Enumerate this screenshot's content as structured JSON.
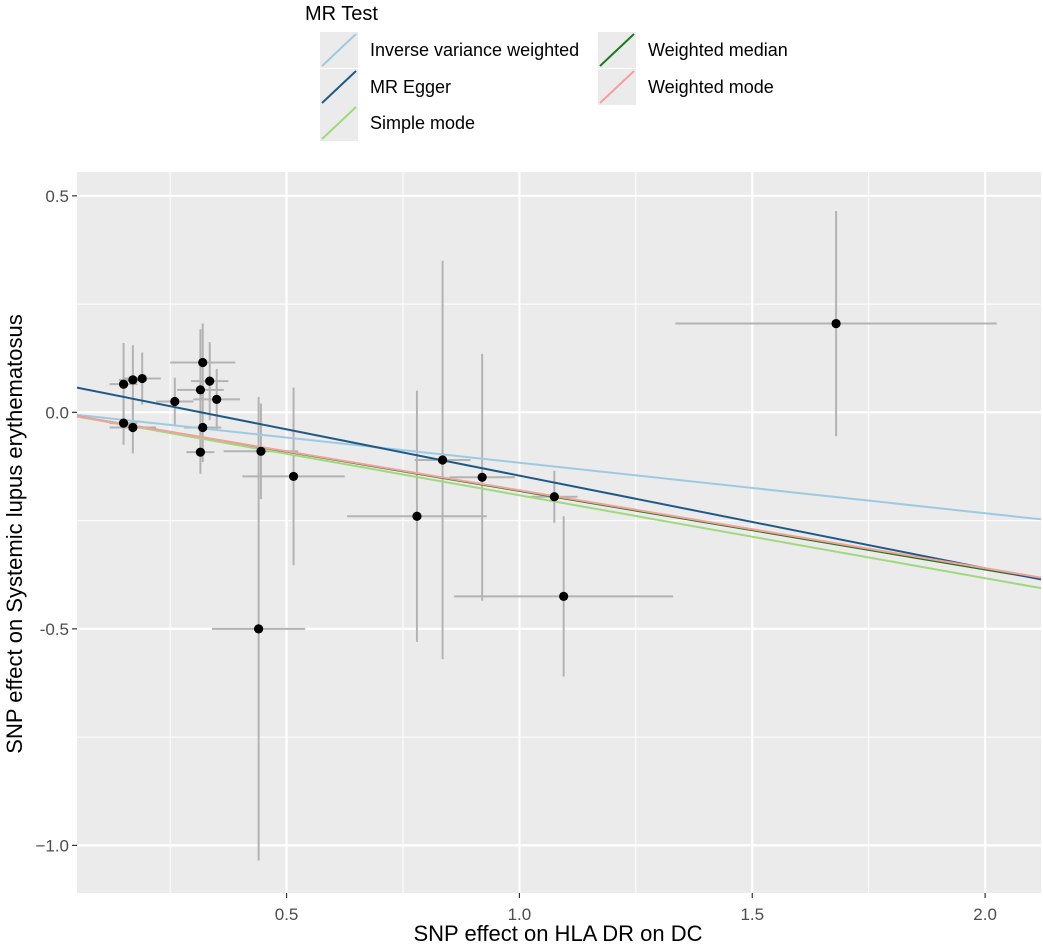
{
  "chart_data": {
    "type": "scatter",
    "title": "",
    "xlabel": "SNP effect on HLA DR on DC",
    "ylabel": "SNP effect on Systemic lupus erythematosus",
    "xlim": [
      0.05,
      2.12
    ],
    "ylim": [
      -1.11,
      0.555
    ],
    "x_ticks": [
      0.5,
      1.0,
      1.5,
      2.0
    ],
    "x_tick_labels": [
      "0.5",
      "1.0",
      "1.5",
      "2.0"
    ],
    "y_ticks": [
      -1.0,
      -0.5,
      0.0,
      0.5
    ],
    "y_tick_labels": [
      "−1.0",
      "-0.5",
      "0.0",
      "0.5"
    ],
    "grid": true,
    "legend": {
      "title": "MR Test",
      "position": "top",
      "entries": [
        {
          "label": "Inverse variance weighted",
          "color": "#9ecae1"
        },
        {
          "label": "Weighted median",
          "color": "#1b7a1b"
        },
        {
          "label": "MR Egger",
          "color": "#1f5a87"
        },
        {
          "label": "Weighted mode",
          "color": "#f4a09a"
        },
        {
          "label": "Simple mode",
          "color": "#9fd97e"
        }
      ]
    },
    "lines": [
      {
        "name": "Inverse variance weighted",
        "color": "#9ecae1",
        "intercept": 0.0,
        "slope": -0.1165
      },
      {
        "name": "MR Egger",
        "color": "#1f5a87",
        "intercept": 0.0677,
        "slope": -0.2139
      },
      {
        "name": "Weighted median",
        "color": "#1b7a1b",
        "intercept": 0.0,
        "slope": -0.1815
      },
      {
        "name": "Weighted mode",
        "color": "#f4a09a",
        "intercept": 0.0,
        "slope": -0.18
      },
      {
        "name": "Simple mode",
        "color": "#9fd97e",
        "intercept": 0.0,
        "slope": -0.1915
      }
    ],
    "points": [
      {
        "x": 0.15,
        "y": 0.065,
        "xerr": 0.03,
        "yerr": 0.095
      },
      {
        "x": 0.17,
        "y": 0.075,
        "xerr": 0.03,
        "yerr": 0.08
      },
      {
        "x": 0.19,
        "y": 0.078,
        "xerr": 0.04,
        "yerr": 0.06
      },
      {
        "x": 0.15,
        "y": -0.025,
        "xerr": 0.03,
        "yerr": 0.05
      },
      {
        "x": 0.17,
        "y": -0.035,
        "xerr": 0.05,
        "yerr": 0.06
      },
      {
        "x": 0.26,
        "y": 0.025,
        "xerr": 0.04,
        "yerr": 0.055
      },
      {
        "x": 0.32,
        "y": 0.115,
        "xerr": 0.07,
        "yerr": 0.09
      },
      {
        "x": 0.335,
        "y": 0.072,
        "xerr": 0.04,
        "yerr": 0.09
      },
      {
        "x": 0.315,
        "y": 0.052,
        "xerr": 0.05,
        "yerr": 0.14
      },
      {
        "x": 0.35,
        "y": 0.03,
        "xerr": 0.05,
        "yerr": 0.07
      },
      {
        "x": 0.32,
        "y": -0.035,
        "xerr": 0.04,
        "yerr": 0.08
      },
      {
        "x": 0.315,
        "y": -0.092,
        "xerr": 0.03,
        "yerr": 0.05
      },
      {
        "x": 0.445,
        "y": -0.09,
        "xerr": 0.08,
        "yerr": 0.11
      },
      {
        "x": 0.515,
        "y": -0.148,
        "xerr": 0.11,
        "yerr": 0.205
      },
      {
        "x": 0.44,
        "y": -0.5,
        "xerr": 0.1,
        "yerr": 0.535
      },
      {
        "x": 0.78,
        "y": -0.24,
        "xerr": 0.15,
        "yerr": 0.29
      },
      {
        "x": 0.835,
        "y": -0.11,
        "xerr": 0.06,
        "yerr": 0.46
      },
      {
        "x": 0.92,
        "y": -0.15,
        "xerr": 0.07,
        "yerr": 0.285
      },
      {
        "x": 1.075,
        "y": -0.195,
        "xerr": 0.05,
        "yerr": 0.06
      },
      {
        "x": 1.095,
        "y": -0.425,
        "xerr": 0.235,
        "yerr": 0.185
      },
      {
        "x": 1.68,
        "y": 0.205,
        "xerr": 0.345,
        "yerr": 0.26
      }
    ]
  }
}
